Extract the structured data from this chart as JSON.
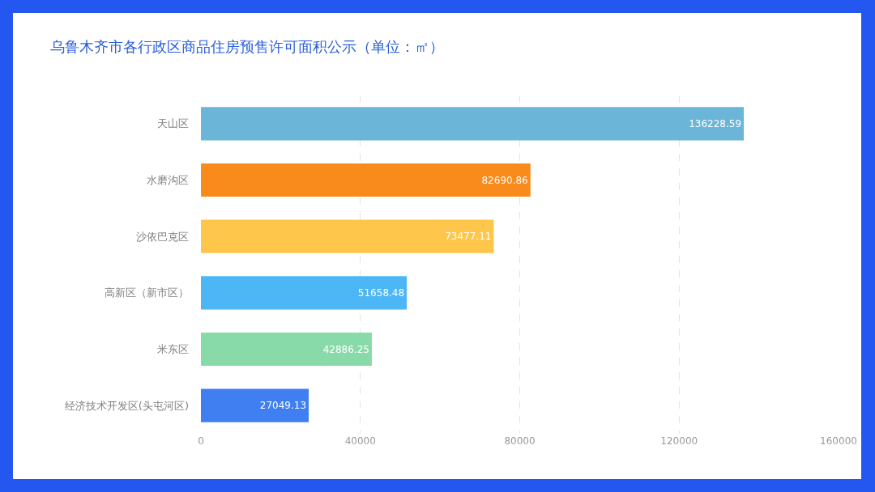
{
  "chart_data": {
    "type": "bar",
    "orientation": "horizontal",
    "title": "乌鲁木齐市各行政区商品住房预售许可面积公示（单位：㎡）",
    "categories": [
      "天山区",
      "水磨沟区",
      "沙依巴克区",
      "高新区（新市区）",
      "米东区",
      "经济技术开发区(头屯河区)"
    ],
    "values": [
      136228.59,
      82690.86,
      73477.11,
      51658.48,
      42886.25,
      27049.13
    ],
    "colors": [
      "#6bb5d8",
      "#f98a1c",
      "#fec64b",
      "#4db6f5",
      "#88dba8",
      "#3f7ff2"
    ],
    "xlim": [
      0,
      160000
    ],
    "xticks": [
      0,
      40000,
      80000,
      120000,
      160000
    ],
    "grid": "x",
    "data_labels": true
  }
}
